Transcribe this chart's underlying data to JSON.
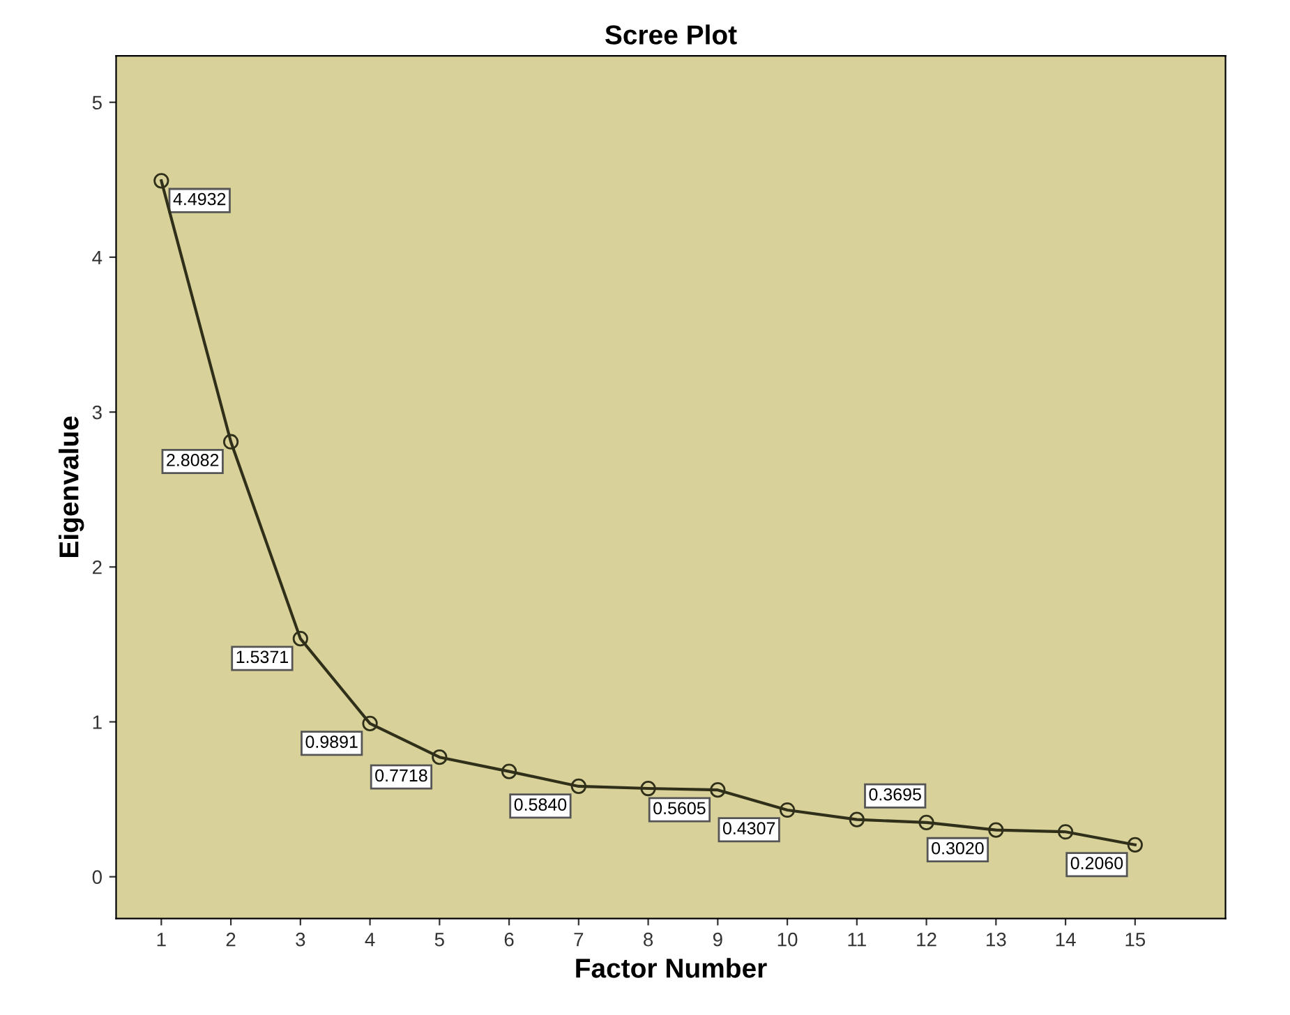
{
  "chart_data": {
    "type": "line",
    "title": "Scree Plot",
    "xlabel": "Factor Number",
    "ylabel": "Eigenvalue",
    "categories": [
      "1",
      "2",
      "3",
      "4",
      "5",
      "6",
      "7",
      "8",
      "9",
      "10",
      "11",
      "12",
      "13",
      "14",
      "15"
    ],
    "series": [
      {
        "color": "#2f2f1a",
        "values": [
          4.4932,
          2.8082,
          1.5371,
          0.9891,
          0.7718,
          0.68,
          0.584,
          0.57,
          0.5605,
          0.4307,
          0.3695,
          0.35,
          0.302,
          0.29,
          0.206
        ],
        "value_labels": [
          "4.4932",
          "2.8082",
          "1.5371",
          "0.9891",
          "0.7718",
          null,
          "0.5840",
          null,
          "0.5605",
          "0.4307",
          "0.3695",
          null,
          "0.3020",
          null,
          "0.2060"
        ]
      }
    ],
    "ylim": [
      -0.27,
      5.3
    ],
    "yticks": [
      0,
      1,
      2,
      3,
      4,
      5
    ],
    "marker": "circle",
    "line_style": "solid",
    "grid": false,
    "legend": false
  }
}
